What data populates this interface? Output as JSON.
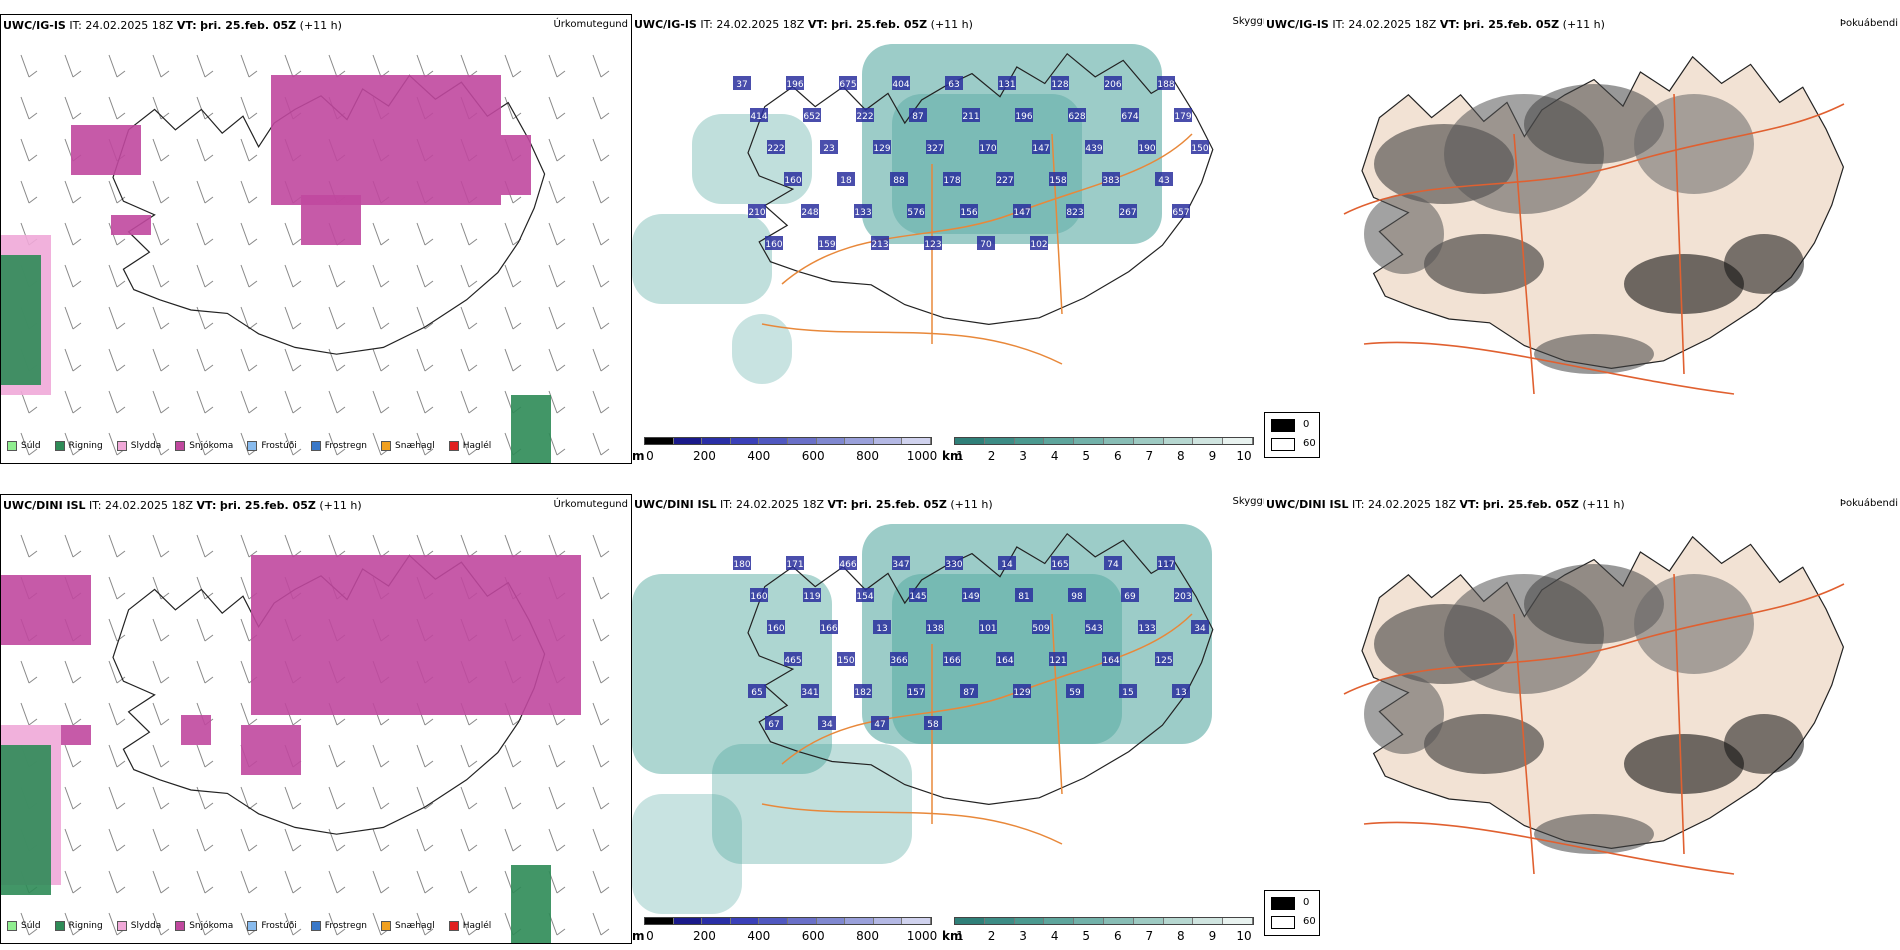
{
  "rows": [
    {
      "model": "UWC/IG-IS",
      "it_label": "IT:",
      "it_value": "24.02.2025 18Z",
      "vt_label": "VT:",
      "vt_value": "þri. 25.feb. 05Z",
      "lead": "(+11 h)",
      "labels": [
        "",
        "",
        "",
        "",
        "",
        "",
        "",
        "",
        "",
        "",
        "",
        "",
        "",
        "",
        "",
        "",
        "",
        "",
        "",
        "",
        "",
        "",
        "",
        "",
        "",
        "",
        "",
        "",
        "",
        "",
        "",
        "",
        "",
        ""
      ],
      "peaks": [
        "37",
        "196",
        "675",
        "404",
        "63",
        "131",
        "128",
        "206",
        "188",
        "414",
        "652",
        "222",
        "87",
        "211",
        "196",
        "628",
        "674",
        "179",
        "222",
        "23",
        "129",
        "327",
        "170",
        "147",
        "439",
        "190",
        "150",
        "160",
        "18",
        "88",
        "178",
        "227",
        "158",
        "383",
        "43",
        "210",
        "248",
        "133",
        "576",
        "156",
        "147",
        "823",
        "267",
        "657",
        "160",
        "159",
        "213",
        "123",
        "70",
        "102"
      ]
    },
    {
      "model": "UWC/DINI ISL",
      "it_label": "IT:",
      "it_value": "24.02.2025 18Z",
      "vt_label": "VT:",
      "vt_value": "þri. 25.feb. 05Z",
      "lead": "(+11 h)",
      "labels": [],
      "peaks": [
        "180",
        "171",
        "466",
        "347",
        "330",
        "14",
        "165",
        "74",
        "117",
        "160",
        "119",
        "154",
        "145",
        "149",
        "81",
        "98",
        "69",
        "203",
        "160",
        "166",
        "13",
        "138",
        "101",
        "509",
        "543",
        "133",
        "34",
        "465",
        "150",
        "366",
        "166",
        "164",
        "121",
        "164",
        "125",
        "65",
        "341",
        "182",
        "157",
        "87",
        "129",
        "59",
        "15",
        "13",
        "67",
        "34",
        "47",
        "58"
      ]
    }
  ],
  "panels": {
    "precip_type_title": "Úrkomutegund",
    "visibility_title": "Skyggni",
    "fog_title": "Þokuábendi"
  },
  "legend_precip": [
    {
      "label": "Súld",
      "color": "#90ee90"
    },
    {
      "label": "Rigning",
      "color": "#2e8b57"
    },
    {
      "label": "Slydda",
      "color": "#f0a8d8"
    },
    {
      "label": "Snjókoma",
      "color": "#c0489e"
    },
    {
      "label": "Frostúði",
      "color": "#88bbee"
    },
    {
      "label": "Frostregn",
      "color": "#3a78c8"
    },
    {
      "label": "Snæhagl",
      "color": "#f0a020"
    },
    {
      "label": "Haglél",
      "color": "#e02020"
    }
  ],
  "visibility_m": {
    "unit": "m",
    "ticks": [
      "0",
      "200",
      "400",
      "600",
      "800",
      "1000"
    ]
  },
  "visibility_km": {
    "unit": "km",
    "ticks": [
      "1",
      "2",
      "3",
      "4",
      "5",
      "6",
      "7",
      "8",
      "9",
      "10"
    ]
  },
  "fog_legend": {
    "high": "0",
    "low": "60"
  },
  "colors": {
    "snow": "#c0489e",
    "rain": "#2e8b57",
    "sleet": "#f0a8d8",
    "teal": "#4aa39a",
    "navy": "#2a2f9e",
    "land": "#f2e2d4",
    "road": "#e06030",
    "orange_road": "#e8883a"
  }
}
